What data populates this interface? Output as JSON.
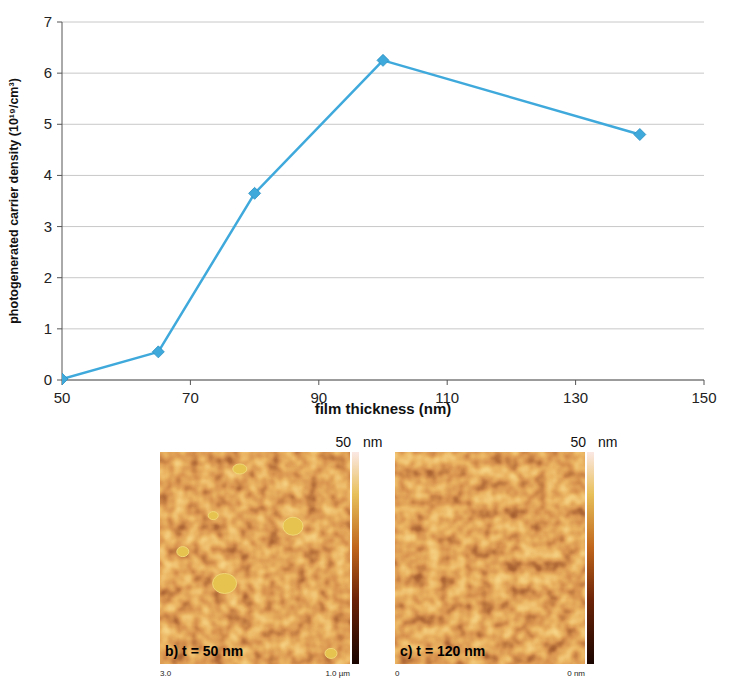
{
  "chart_data": {
    "type": "line",
    "x_label": "film thickness (nm)",
    "y_label": "photogenerated carrier density (10¹⁹/cm³)",
    "x": [
      50,
      65,
      80,
      100,
      140
    ],
    "values": [
      0.02,
      0.55,
      3.65,
      6.25,
      4.8
    ],
    "color": "#3fa9dc",
    "marker": "diamond",
    "line_style": "solid",
    "xlim": [
      50,
      150
    ],
    "xticks": [
      50,
      70,
      90,
      110,
      130,
      150
    ],
    "ylim": [
      0,
      7
    ],
    "yticks": [
      0,
      1,
      2,
      3,
      4,
      5,
      6,
      7
    ],
    "grid": true
  },
  "images": [
    {
      "label": "b) t = 50 nm",
      "colorbar_label": "50",
      "colorbar_unit": "nm",
      "scale_labels": [
        "3.0",
        "1.0 µm"
      ]
    },
    {
      "label": "c) t = 120 nm",
      "colorbar_label": "50",
      "colorbar_unit": "nm",
      "scale_labels": [
        "0",
        "0 nm"
      ]
    }
  ]
}
